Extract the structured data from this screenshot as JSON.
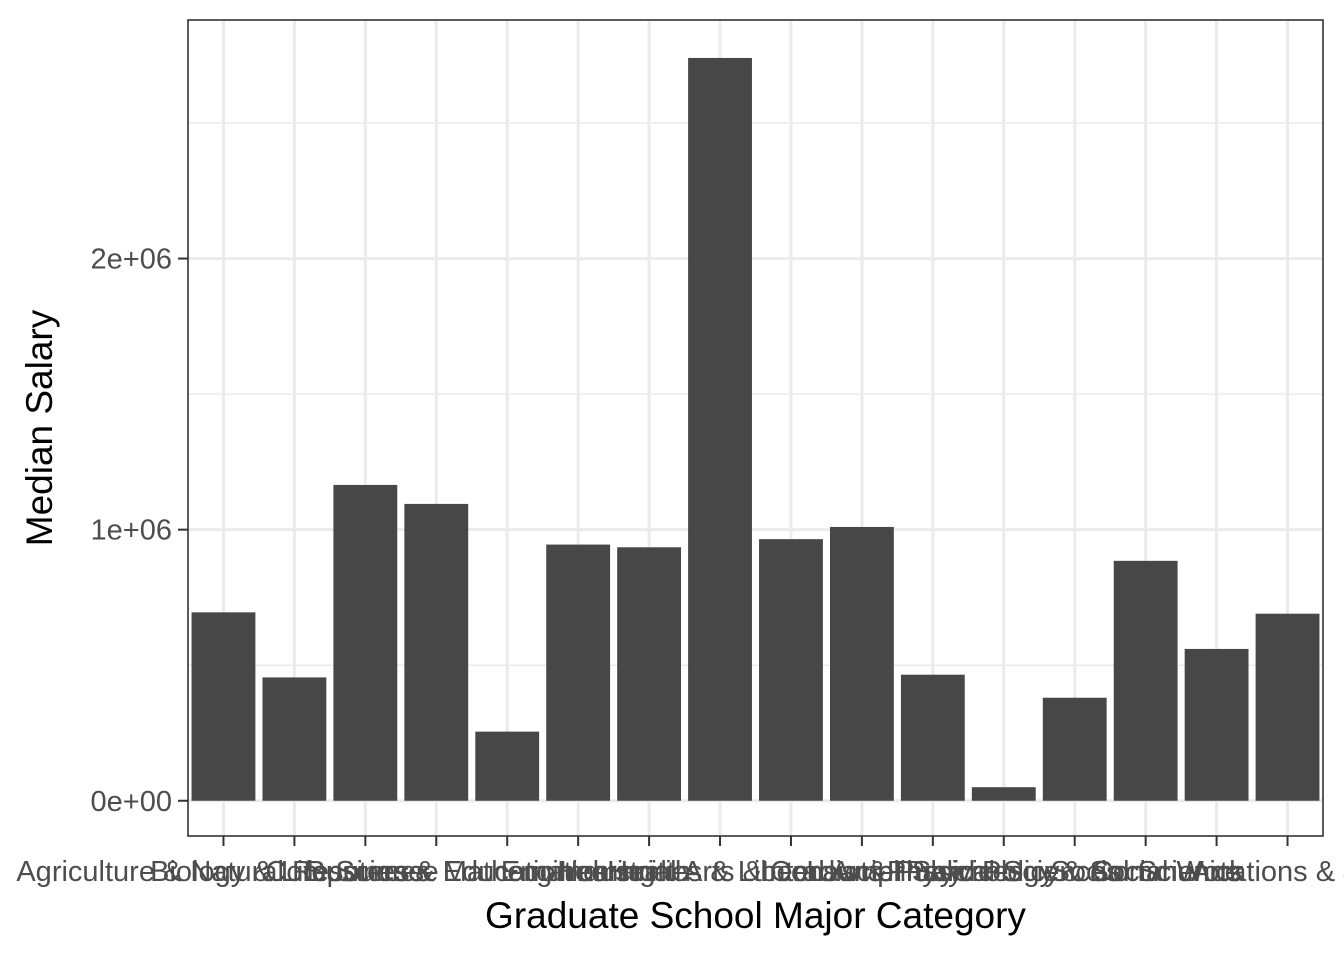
{
  "chart_data": {
    "type": "bar",
    "xlabel": "Graduate School Major Category",
    "ylabel": "Median Salary",
    "categories": [
      "Agriculture & Natural Resources",
      "Biology & Life Science",
      "Business",
      "Computers & Mathematics",
      "Education",
      "Engineering",
      "Health",
      "Humanities & Liberal Arts",
      "Industrial Arts & Consumer Services",
      "Interdisciplinary",
      "Law & Public Policy",
      "Physical Sciences",
      "Psychology & Social Work",
      "Social Science",
      "Arts",
      "Communications & Journalism"
    ],
    "values": [
      695000,
      455000,
      1165000,
      1095000,
      255000,
      945000,
      935000,
      2740000,
      965000,
      1010000,
      465000,
      50000,
      380000,
      885000,
      560000,
      690000
    ],
    "ylim": [
      -130000,
      2880000
    ],
    "yticks": [
      0,
      1000000,
      2000000
    ],
    "ytick_labels": [
      "0e+00",
      "1e+06",
      "2e+06"
    ],
    "bar_color": "#474747",
    "panel_background": "#ffffff",
    "grid": true,
    "grid_color": "#ebebeb",
    "legend": "none"
  }
}
